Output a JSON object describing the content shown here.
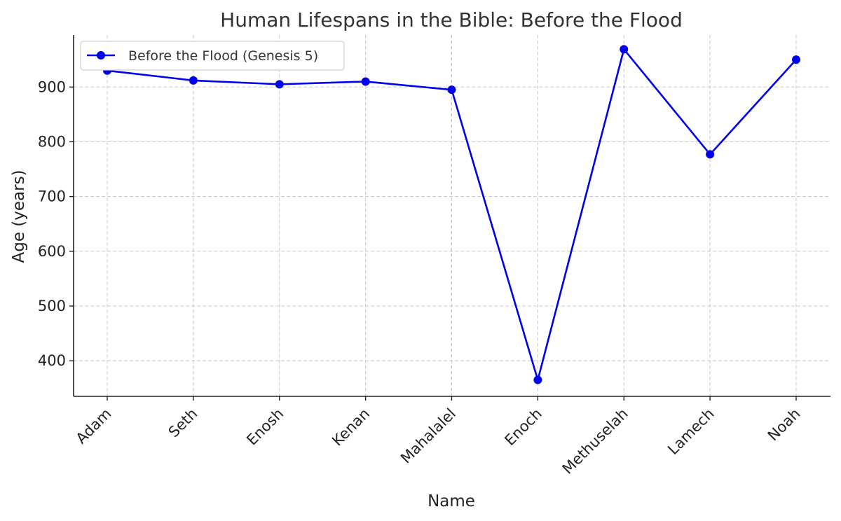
{
  "chart_data": {
    "type": "line",
    "title": "Human Lifespans in the Bible: Before the Flood",
    "xlabel": "Name",
    "ylabel": "Age (years)",
    "categories": [
      "Adam",
      "Seth",
      "Enosh",
      "Kenan",
      "Mahalalel",
      "Enoch",
      "Methuselah",
      "Lamech",
      "Noah"
    ],
    "series": [
      {
        "name": "Before the Flood (Genesis 5)",
        "values": [
          930,
          912,
          905,
          910,
          895,
          365,
          969,
          777,
          950
        ],
        "color": "#0000ee",
        "marker": "circle"
      }
    ],
    "ylim": [
      335,
      995
    ],
    "yticks": [
      400,
      500,
      600,
      700,
      800,
      900
    ],
    "grid": true,
    "legend_position": "top-left"
  }
}
